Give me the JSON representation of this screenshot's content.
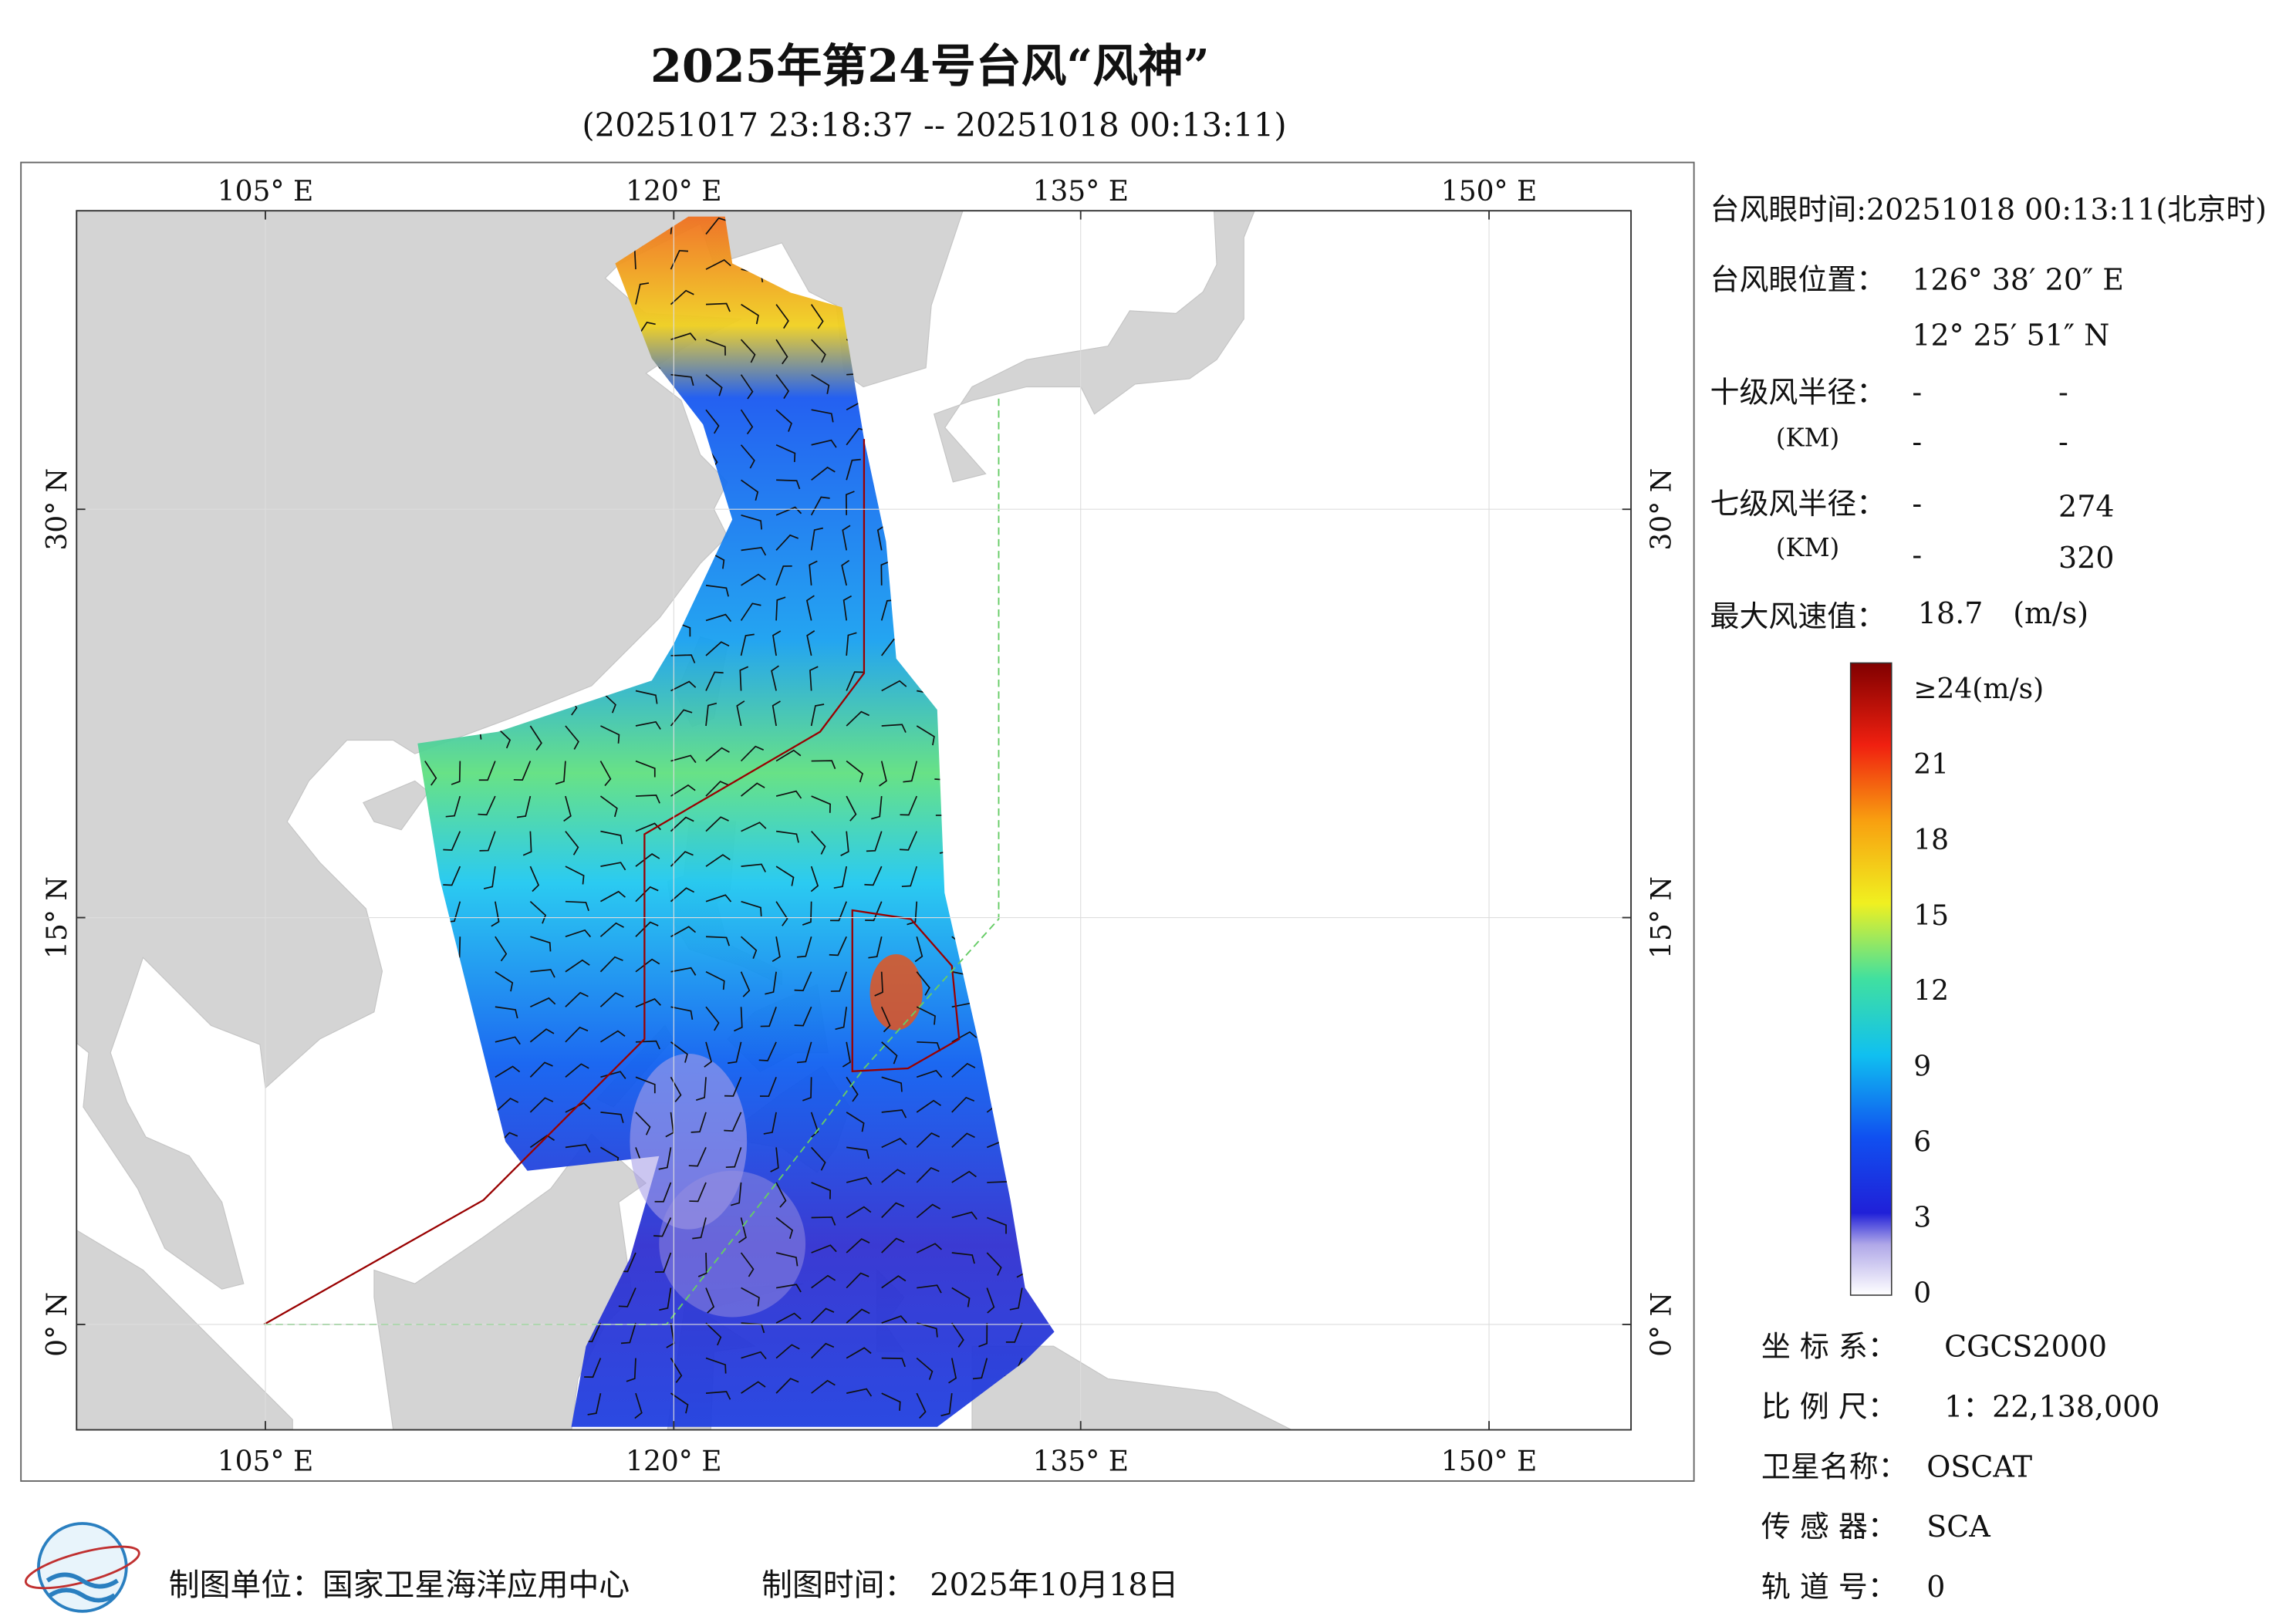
{
  "header": {
    "title": "2025年第24号台风“风神”",
    "subtitle": "(20251017 23:18:37 -- 20251018 00:13:11)"
  },
  "map": {
    "lon_labels": [
      "105° E",
      "120° E",
      "135° E",
      "150° E"
    ],
    "lat_labels": [
      "30° N",
      "15° N",
      "0° N"
    ]
  },
  "info": {
    "eye_time": "台风眼时间:20251018 00:13:11(北京时)",
    "eye_position_label": "台风眼位置：",
    "eye_lon": "126° 38′ 20″ E",
    "eye_lat": "12° 25′ 51″ N",
    "r10_label": "十级风半径：",
    "r10_unit": "(KM)",
    "r10_values": [
      [
        "-",
        "-"
      ],
      [
        "-",
        "-"
      ]
    ],
    "r7_label": "七级风半径：",
    "r7_unit": "(KM)",
    "r7_values": [
      [
        "-",
        "274"
      ],
      [
        "-",
        "320"
      ]
    ],
    "max_wind_label": "最大风速值：",
    "max_wind": "18.7",
    "max_wind_unit": "(m/s)"
  },
  "colorbar": {
    "labels": [
      "≥24(m/s)",
      "21",
      "18",
      "15",
      "12",
      "9",
      "6",
      "3",
      "0"
    ]
  },
  "meta": [
    {
      "label": "坐 标 系：",
      "value": "CGCS2000"
    },
    {
      "label": "比 例 尺：",
      "value": "1：22,138,000"
    },
    {
      "label": "卫星名称：",
      "value": "OSCAT"
    },
    {
      "label": "传 感 器：",
      "value": "SCA"
    },
    {
      "label": "轨 道 号：",
      "value": "0"
    }
  ],
  "footer": {
    "unit": "制图单位：国家卫星海洋应用中心",
    "time_label": "制图时间：",
    "time": "2025年10月18日"
  }
}
